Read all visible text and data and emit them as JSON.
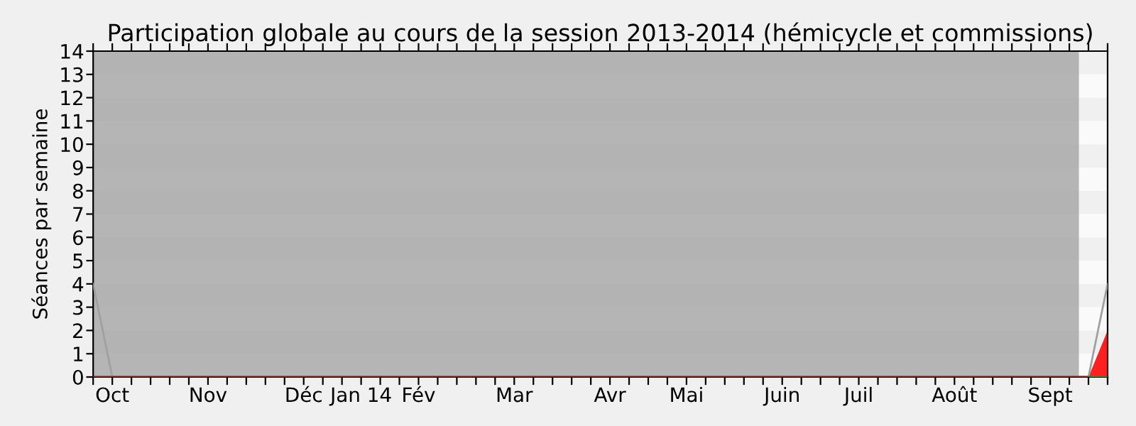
{
  "chart_data": {
    "type": "area",
    "title": "Participation globale au cours de la session 2013-2014 (hémicycle et commissions)",
    "ylabel": "Séances par semaine",
    "categories": [
      null,
      "Oct",
      null,
      null,
      null,
      null,
      "Nov",
      null,
      null,
      null,
      null,
      "Déc",
      null,
      null,
      "Jan 14",
      null,
      null,
      "Fév",
      null,
      null,
      null,
      null,
      "Mar",
      null,
      null,
      null,
      null,
      "Avr",
      null,
      null,
      null,
      "Mai",
      null,
      null,
      null,
      null,
      "Juin",
      null,
      null,
      null,
      "Juil",
      null,
      null,
      null,
      null,
      "Août",
      null,
      null,
      null,
      null,
      "Sept",
      null,
      null,
      null
    ],
    "series": [
      {
        "type": "line",
        "color": "#a0a0a0",
        "values": [
          4,
          0,
          0,
          0,
          0,
          0,
          0,
          0,
          0,
          0,
          0,
          0,
          0,
          0,
          0,
          0,
          0,
          0,
          0,
          0,
          0,
          0,
          0,
          0,
          0,
          0,
          0,
          0,
          0,
          0,
          0,
          0,
          0,
          0,
          0,
          0,
          0,
          0,
          0,
          0,
          0,
          0,
          0,
          0,
          0,
          0,
          0,
          0,
          0,
          0,
          0,
          0,
          0,
          4
        ]
      },
      {
        "type": "line",
        "color": "#8b1a1a",
        "values": [
          0,
          0,
          0,
          0,
          0,
          0,
          0,
          0,
          0,
          0,
          0,
          0,
          0,
          0,
          0,
          0,
          0,
          0,
          0,
          0,
          0,
          0,
          0,
          0,
          0,
          0,
          0,
          0,
          0,
          0,
          0,
          0,
          0,
          0,
          0,
          0,
          0,
          0,
          0,
          0,
          0,
          0,
          0,
          0,
          0,
          0,
          0,
          0,
          0,
          0,
          0,
          0,
          0,
          null
        ]
      },
      {
        "type": "line",
        "color": "#2e8b2e",
        "values": [
          null,
          null,
          null,
          null,
          null,
          null,
          null,
          null,
          null,
          null,
          null,
          null,
          null,
          null,
          null,
          null,
          null,
          null,
          null,
          null,
          null,
          null,
          null,
          null,
          null,
          null,
          null,
          null,
          null,
          null,
          null,
          null,
          null,
          null,
          null,
          null,
          null,
          null,
          null,
          null,
          null,
          null,
          null,
          null,
          null,
          null,
          null,
          null,
          null,
          null,
          null,
          null,
          0,
          0
        ]
      },
      {
        "color": "#ff2020",
        "values": [
          0,
          0,
          0,
          0,
          0,
          0,
          0,
          0,
          0,
          0,
          0,
          0,
          0,
          0,
          0,
          0,
          0,
          0,
          0,
          0,
          0,
          0,
          0,
          0,
          0,
          0,
          0,
          0,
          0,
          0,
          0,
          0,
          0,
          0,
          0,
          0,
          0,
          0,
          0,
          0,
          0,
          0,
          0,
          0,
          0,
          0,
          0,
          0,
          0,
          0,
          0,
          0,
          0,
          2
        ]
      }
    ],
    "ylim": [
      0,
      14
    ],
    "yticks": [
      0,
      1,
      2,
      3,
      4,
      5,
      6,
      7,
      8,
      9,
      10,
      11,
      12,
      13,
      14
    ],
    "grid": false
  }
}
